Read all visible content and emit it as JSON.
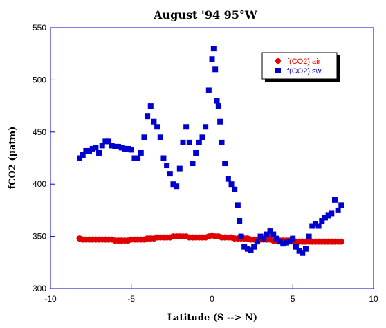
{
  "chart_data": {
    "type": "scatter",
    "title": "August '94 95°W",
    "xlabel": "Latitude (S --> N)",
    "ylabel": "fCO2 (µatm)",
    "xlim": [
      -10,
      10
    ],
    "ylim": [
      300,
      550
    ],
    "xticks": [
      -10,
      -5,
      0,
      5,
      10
    ],
    "yticks": [
      300,
      350,
      400,
      450,
      500,
      550
    ],
    "grid": false,
    "legend_position": "top-right",
    "series": [
      {
        "name": "f(CO2) air",
        "marker": "circle",
        "color": "#e00000",
        "x": [
          -8.2,
          -8.0,
          -7.8,
          -7.6,
          -7.4,
          -7.2,
          -7.0,
          -6.8,
          -6.6,
          -6.4,
          -6.2,
          -6.0,
          -5.8,
          -5.6,
          -5.4,
          -5.2,
          -5.0,
          -4.8,
          -4.6,
          -4.4,
          -4.2,
          -4.0,
          -3.8,
          -3.6,
          -3.4,
          -3.2,
          -3.0,
          -2.8,
          -2.6,
          -2.4,
          -2.2,
          -2.0,
          -1.8,
          -1.6,
          -1.4,
          -1.2,
          -1.0,
          -0.8,
          -0.6,
          -0.4,
          -0.2,
          0.0,
          0.2,
          0.4,
          0.6,
          0.8,
          1.0,
          1.2,
          1.4,
          1.6,
          1.8,
          2.0,
          2.2,
          2.4,
          2.6,
          2.8,
          3.0,
          3.2,
          3.4,
          3.6,
          3.8,
          4.0,
          4.2,
          4.4,
          4.6,
          4.8,
          5.0,
          5.2,
          5.4,
          5.6,
          5.8,
          6.0,
          6.2,
          6.4,
          6.6,
          6.8,
          7.0,
          7.2,
          7.4,
          7.6,
          7.8,
          8.0
        ],
        "y": [
          348,
          347,
          347,
          347,
          347,
          347,
          347,
          347,
          347,
          347,
          347,
          346,
          346,
          346,
          346,
          346,
          347,
          347,
          347,
          347,
          347,
          348,
          348,
          348,
          349,
          349,
          349,
          349,
          349,
          350,
          350,
          350,
          350,
          350,
          349,
          349,
          349,
          349,
          349,
          349,
          350,
          351,
          350,
          350,
          349,
          349,
          349,
          349,
          348,
          348,
          348,
          348,
          348,
          347,
          347,
          347,
          347,
          347,
          347,
          347,
          346,
          346,
          346,
          346,
          346,
          346,
          346,
          345,
          345,
          345,
          345,
          345,
          345,
          345,
          345,
          345,
          345,
          345,
          345,
          345,
          345,
          345
        ]
      },
      {
        "name": "f(CO2) sw",
        "marker": "square",
        "color": "#0000cc",
        "x": [
          -8.2,
          -8.0,
          -7.8,
          -7.6,
          -7.4,
          -7.2,
          -7.0,
          -6.8,
          -6.6,
          -6.4,
          -6.2,
          -6.0,
          -5.8,
          -5.6,
          -5.4,
          -5.2,
          -5.0,
          -4.8,
          -4.6,
          -4.4,
          -4.2,
          -4.0,
          -3.8,
          -3.6,
          -3.4,
          -3.2,
          -3.0,
          -2.8,
          -2.6,
          -2.4,
          -2.2,
          -2.0,
          -1.8,
          -1.6,
          -1.4,
          -1.2,
          -1.0,
          -0.8,
          -0.6,
          -0.4,
          -0.2,
          0.0,
          0.1,
          0.2,
          0.3,
          0.4,
          0.5,
          0.6,
          0.8,
          1.0,
          1.2,
          1.4,
          1.6,
          1.7,
          1.8,
          2.0,
          2.2,
          2.4,
          2.6,
          2.8,
          3.0,
          3.2,
          3.4,
          3.6,
          3.8,
          4.0,
          4.2,
          4.4,
          4.6,
          4.8,
          5.0,
          5.2,
          5.4,
          5.6,
          5.8,
          6.0,
          6.2,
          6.4,
          6.6,
          6.8,
          7.0,
          7.2,
          7.4,
          7.6,
          7.8,
          8.0
        ],
        "y": [
          425,
          428,
          432,
          432,
          434,
          435,
          430,
          437,
          441,
          441,
          437,
          436,
          436,
          435,
          434,
          434,
          433,
          425,
          425,
          430,
          445,
          465,
          475,
          460,
          455,
          445,
          425,
          418,
          410,
          400,
          398,
          415,
          440,
          455,
          440,
          420,
          430,
          440,
          445,
          455,
          490,
          520,
          530,
          510,
          480,
          475,
          460,
          440,
          420,
          405,
          400,
          395,
          380,
          365,
          350,
          340,
          338,
          337,
          340,
          345,
          350,
          348,
          352,
          355,
          352,
          348,
          345,
          343,
          344,
          345,
          348,
          340,
          336,
          334,
          338,
          350,
          360,
          362,
          360,
          365,
          368,
          370,
          372,
          385,
          375,
          380
        ]
      }
    ]
  }
}
